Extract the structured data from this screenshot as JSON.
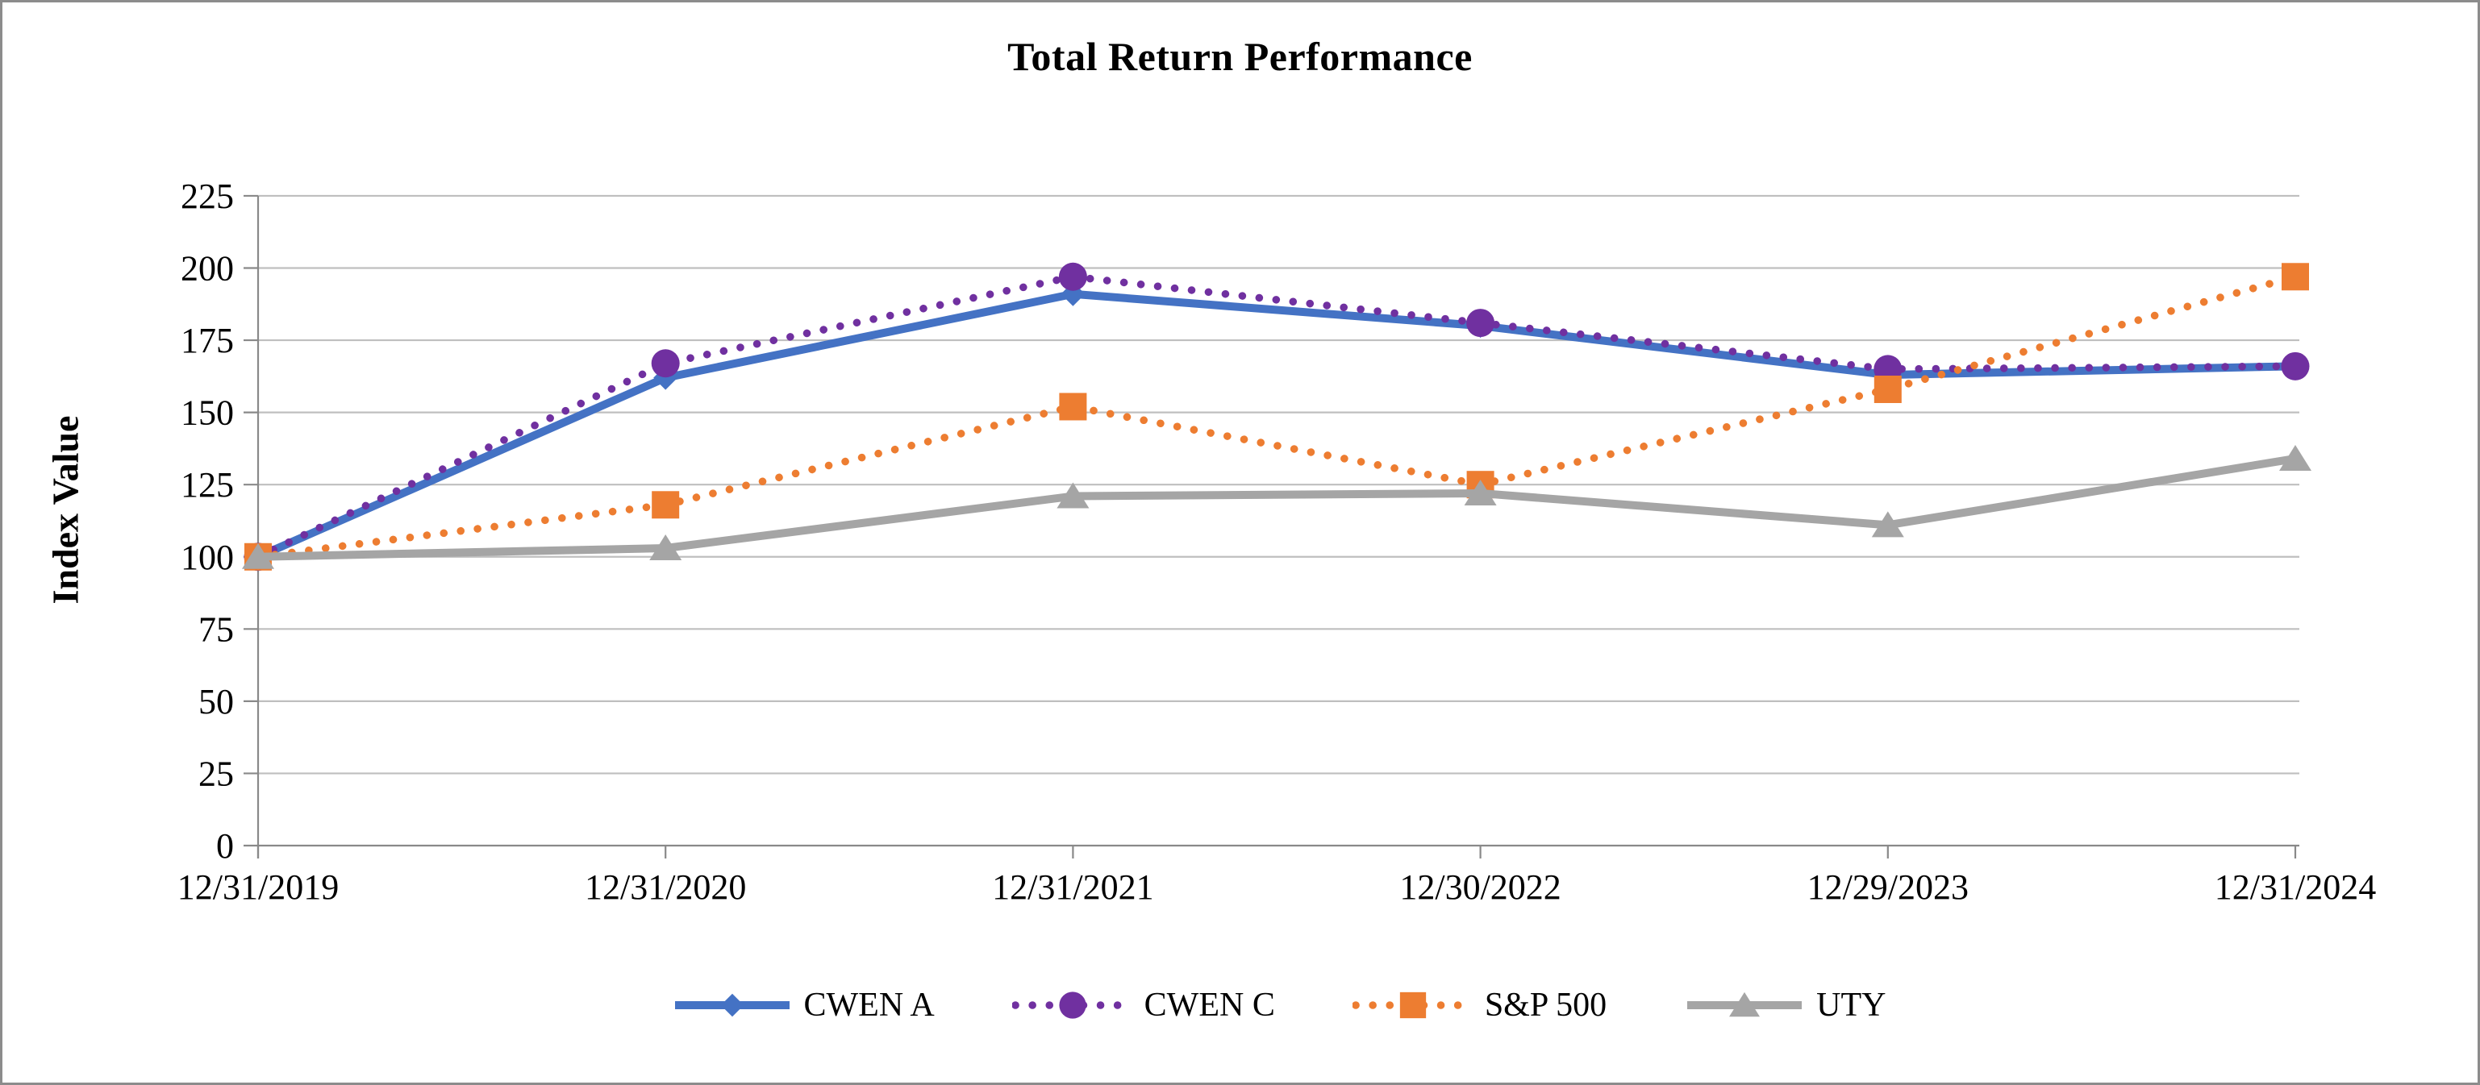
{
  "chart_data": {
    "type": "line",
    "title": "Total Return Performance",
    "xlabel": "",
    "ylabel": "Index Value",
    "ylim": [
      0,
      225
    ],
    "ytick_step": 25,
    "grid": true,
    "legend_position": "bottom",
    "axis_color": "#898989",
    "grid_color": "#bfbfbf",
    "categories": [
      "12/31/2019",
      "12/31/2020",
      "12/31/2021",
      "12/30/2022",
      "12/29/2023",
      "12/31/2024"
    ],
    "series": [
      {
        "name": "CWEN A",
        "color": "#4472c4",
        "line": "solid",
        "marker": "diamond",
        "values": [
          100,
          162,
          191,
          180,
          163,
          166
        ]
      },
      {
        "name": "CWEN C",
        "color": "#7030a0",
        "line": "dotted",
        "marker": "circle",
        "values": [
          100,
          167,
          197,
          181,
          165,
          166
        ]
      },
      {
        "name": "S&P 500",
        "color": "#ed7d31",
        "line": "dotted",
        "marker": "square",
        "values": [
          100,
          118,
          152,
          125,
          158,
          197
        ]
      },
      {
        "name": "UTY",
        "color": "#a5a5a5",
        "line": "solid",
        "marker": "triangle",
        "values": [
          100,
          103,
          121,
          122,
          111,
          134
        ]
      }
    ]
  }
}
